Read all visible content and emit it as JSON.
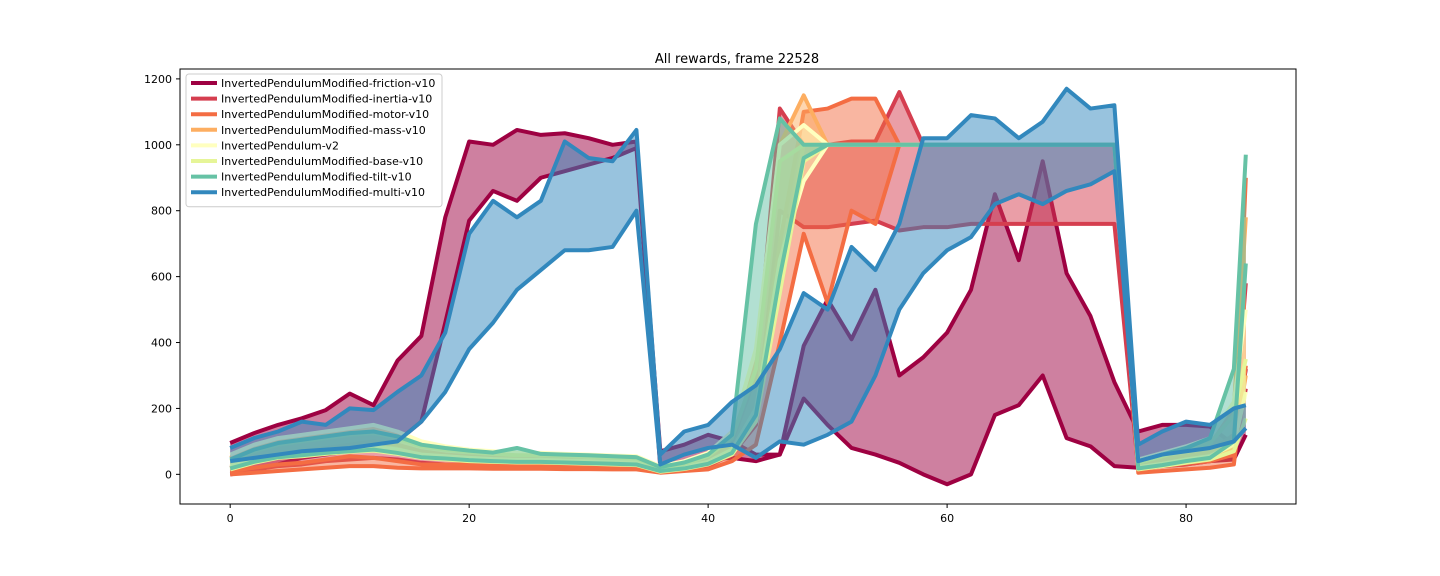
{
  "chart_data": {
    "type": "line",
    "title": "All rewards, frame 22528",
    "xlabel": "",
    "ylabel": "",
    "xlim": [
      -4.2,
      89.2
    ],
    "ylim": [
      -90,
      1230
    ],
    "xticks": [
      0,
      20,
      40,
      60,
      80
    ],
    "yticks": [
      0,
      200,
      400,
      600,
      800,
      1000,
      1200
    ],
    "grid": false,
    "legend_position": "top-left",
    "series": [
      {
        "name": "InvertedPendulumModified-friction-v10",
        "color": "#9e0142",
        "x": [
          0,
          2,
          4,
          6,
          8,
          10,
          12,
          14,
          16,
          18,
          20,
          22,
          24,
          26,
          28,
          30,
          32,
          34,
          36,
          38,
          40,
          42,
          44,
          46,
          48,
          50,
          52,
          54,
          56,
          58,
          60,
          62,
          64,
          66,
          68,
          70,
          72,
          74,
          76,
          78,
          80,
          82,
          84,
          85
        ],
        "upper": [
          95,
          125,
          150,
          170,
          195,
          245,
          210,
          345,
          420,
          780,
          1010,
          1000,
          1045,
          1030,
          1035,
          1020,
          1000,
          1010,
          70,
          90,
          120,
          100,
          60,
          60,
          390,
          530,
          410,
          560,
          300,
          355,
          430,
          560,
          850,
          650,
          950,
          610,
          480,
          280,
          130,
          150,
          150,
          145,
          90,
          320
        ],
        "lower": [
          0,
          10,
          30,
          50,
          60,
          70,
          80,
          100,
          160,
          460,
          770,
          860,
          830,
          900,
          920,
          940,
          960,
          990,
          20,
          35,
          45,
          50,
          40,
          60,
          230,
          150,
          80,
          60,
          35,
          0,
          -30,
          0,
          180,
          210,
          300,
          110,
          85,
          25,
          20,
          25,
          30,
          40,
          45,
          120
        ]
      },
      {
        "name": "InvertedPendulumModified-inertia-v10",
        "color": "#d53e4f",
        "x": [
          0,
          2,
          4,
          6,
          8,
          10,
          12,
          14,
          16,
          18,
          20,
          22,
          24,
          26,
          28,
          30,
          32,
          34,
          36,
          38,
          40,
          42,
          44,
          46,
          48,
          50,
          52,
          54,
          56,
          58,
          60,
          62,
          64,
          66,
          68,
          70,
          72,
          74,
          76,
          78,
          80,
          82,
          84,
          85
        ],
        "upper": [
          20,
          40,
          60,
          70,
          80,
          90,
          100,
          90,
          70,
          60,
          55,
          50,
          50,
          45,
          45,
          40,
          40,
          35,
          20,
          30,
          50,
          100,
          300,
          1110,
          1000,
          1000,
          1010,
          1010,
          1160,
          1000,
          1000,
          1000,
          1000,
          1000,
          1000,
          1000,
          1000,
          1000,
          30,
          45,
          55,
          70,
          120,
          580
        ],
        "lower": [
          5,
          15,
          25,
          30,
          40,
          45,
          50,
          45,
          35,
          30,
          28,
          25,
          25,
          22,
          22,
          20,
          20,
          18,
          10,
          15,
          25,
          60,
          150,
          800,
          750,
          750,
          760,
          770,
          740,
          750,
          750,
          760,
          760,
          760,
          760,
          760,
          760,
          760,
          15,
          25,
          30,
          40,
          60,
          260
        ]
      },
      {
        "name": "InvertedPendulumModified-motor-v10",
        "color": "#f46d43",
        "x": [
          0,
          2,
          4,
          6,
          8,
          10,
          12,
          14,
          16,
          18,
          20,
          22,
          24,
          26,
          28,
          30,
          32,
          34,
          36,
          38,
          40,
          42,
          44,
          46,
          48,
          50,
          52,
          54,
          56,
          58,
          60,
          62,
          64,
          66,
          68,
          70,
          72,
          74,
          76,
          78,
          80,
          82,
          84,
          85
        ],
        "upper": [
          10,
          20,
          30,
          35,
          45,
          55,
          50,
          40,
          30,
          30,
          30,
          28,
          28,
          28,
          27,
          27,
          26,
          25,
          15,
          20,
          30,
          80,
          200,
          700,
          1100,
          1110,
          1140,
          1140,
          1000,
          1000,
          1000,
          1000,
          1000,
          1000,
          1000,
          1000,
          1000,
          1000,
          20,
          30,
          35,
          40,
          60,
          900
        ],
        "lower": [
          0,
          5,
          10,
          15,
          20,
          25,
          25,
          20,
          18,
          18,
          18,
          17,
          17,
          17,
          16,
          16,
          15,
          15,
          5,
          10,
          15,
          40,
          90,
          400,
          730,
          520,
          800,
          760,
          1000,
          1000,
          1000,
          1000,
          1000,
          1000,
          1000,
          1000,
          1000,
          1000,
          5,
          10,
          15,
          20,
          30,
          330
        ]
      },
      {
        "name": "InvertedPendulumModified-mass-v10",
        "color": "#fdae61",
        "x": [
          0,
          2,
          4,
          6,
          8,
          10,
          12,
          14,
          16,
          18,
          20,
          22,
          24,
          26,
          28,
          30,
          32,
          34,
          36,
          38,
          40,
          42,
          44,
          46,
          48,
          50,
          52,
          54,
          56,
          58,
          60,
          62,
          64,
          66,
          68,
          70,
          72,
          74,
          76,
          78,
          80,
          82,
          84,
          85
        ],
        "upper": [
          50,
          80,
          100,
          110,
          120,
          130,
          140,
          120,
          90,
          80,
          70,
          65,
          60,
          60,
          58,
          55,
          52,
          50,
          20,
          35,
          60,
          120,
          350,
          1000,
          1150,
          1000,
          1000,
          1000,
          1000,
          1000,
          1000,
          1000,
          1000,
          1000,
          1000,
          1000,
          1000,
          1000,
          40,
          60,
          80,
          100,
          200,
          780
        ],
        "lower": [
          20,
          40,
          55,
          60,
          70,
          75,
          80,
          70,
          55,
          50,
          45,
          42,
          40,
          40,
          38,
          36,
          35,
          33,
          10,
          20,
          35,
          70,
          180,
          600,
          1000,
          1000,
          1000,
          1000,
          1000,
          1000,
          1000,
          1000,
          1000,
          1000,
          1000,
          1000,
          1000,
          1000,
          20,
          30,
          40,
          50,
          80,
          300
        ]
      },
      {
        "name": "InvertedPendulum-v2",
        "color": "#ffffbf",
        "x": [
          0,
          2,
          4,
          6,
          8,
          10,
          12,
          14,
          16,
          18,
          20,
          22,
          24,
          26,
          28,
          30,
          32,
          34,
          36,
          38,
          40,
          42,
          44,
          46,
          48,
          50,
          52,
          54,
          56,
          58,
          60,
          62,
          64,
          66,
          68,
          70,
          72,
          74,
          76,
          78,
          80,
          82,
          84,
          85
        ],
        "upper": [
          60,
          90,
          110,
          120,
          130,
          140,
          150,
          130,
          100,
          85,
          75,
          70,
          65,
          65,
          62,
          60,
          57,
          55,
          25,
          40,
          65,
          130,
          380,
          1000,
          1060,
          1000,
          1000,
          1000,
          1000,
          1000,
          1000,
          1000,
          1000,
          1000,
          1000,
          1000,
          1000,
          1000,
          45,
          65,
          85,
          110,
          220,
          500
        ],
        "lower": [
          25,
          45,
          60,
          65,
          75,
          80,
          85,
          75,
          60,
          55,
          50,
          46,
          44,
          44,
          42,
          40,
          38,
          36,
          12,
          22,
          38,
          75,
          200,
          650,
          890,
          1000,
          1000,
          1000,
          1000,
          1000,
          1000,
          1000,
          1000,
          1000,
          1000,
          1000,
          1000,
          1000,
          22,
          32,
          45,
          55,
          90,
          250
        ]
      },
      {
        "name": "InvertedPendulumModified-base-v10",
        "color": "#e6f598",
        "x": [
          0,
          2,
          4,
          6,
          8,
          10,
          12,
          14,
          16,
          18,
          20,
          22,
          24,
          26,
          28,
          30,
          32,
          34,
          36,
          38,
          40,
          42,
          44,
          46,
          48,
          50,
          52,
          54,
          56,
          58,
          60,
          62,
          64,
          66,
          68,
          70,
          72,
          74,
          76,
          78,
          80,
          82,
          84,
          85
        ],
        "upper": [
          40,
          70,
          90,
          100,
          110,
          120,
          125,
          110,
          85,
          75,
          68,
          62,
          58,
          58,
          56,
          54,
          50,
          48,
          18,
          32,
          55,
          110,
          320,
          950,
          1000,
          1000,
          1000,
          1000,
          1000,
          1000,
          1000,
          1000,
          1000,
          1000,
          1000,
          1000,
          1000,
          1000,
          35,
          55,
          75,
          95,
          180,
          350
        ],
        "lower": [
          15,
          35,
          50,
          55,
          62,
          68,
          72,
          62,
          50,
          45,
          40,
          38,
          36,
          36,
          34,
          32,
          30,
          28,
          8,
          16,
          30,
          60,
          160,
          550,
          950,
          1000,
          1000,
          1000,
          1000,
          1000,
          1000,
          1000,
          1000,
          1000,
          1000,
          1000,
          1000,
          1000,
          15,
          25,
          35,
          45,
          70,
          170
        ]
      },
      {
        "name": "InvertedPendulumModified-tilt-v10",
        "color": "#66c2a5",
        "x": [
          0,
          2,
          4,
          6,
          8,
          10,
          12,
          14,
          16,
          18,
          20,
          22,
          24,
          26,
          28,
          30,
          32,
          34,
          36,
          38,
          40,
          42,
          44,
          46,
          48,
          50,
          52,
          54,
          56,
          58,
          60,
          62,
          64,
          66,
          68,
          70,
          72,
          74,
          76,
          78,
          80,
          82,
          84,
          85
        ],
        "upper": [
          45,
          75,
          95,
          105,
          115,
          125,
          130,
          115,
          90,
          80,
          72,
          66,
          80,
          62,
          60,
          58,
          55,
          52,
          22,
          36,
          60,
          120,
          760,
          1080,
          1000,
          1000,
          1000,
          1000,
          1000,
          1000,
          1000,
          1000,
          1000,
          1000,
          1000,
          1000,
          1000,
          1000,
          40,
          60,
          80,
          110,
          320,
          970
        ],
        "lower": [
          18,
          38,
          52,
          58,
          65,
          70,
          75,
          65,
          52,
          48,
          43,
          40,
          38,
          38,
          36,
          34,
          32,
          30,
          10,
          18,
          32,
          65,
          180,
          600,
          960,
          1000,
          1000,
          1000,
          1000,
          1000,
          1000,
          1000,
          1000,
          1000,
          1000,
          1000,
          1000,
          1000,
          18,
          28,
          40,
          50,
          100,
          640
        ]
      },
      {
        "name": "InvertedPendulumModified-multi-v10",
        "color": "#3288bd",
        "x": [
          0,
          2,
          4,
          6,
          8,
          10,
          12,
          14,
          16,
          18,
          20,
          22,
          24,
          26,
          28,
          30,
          32,
          34,
          36,
          38,
          40,
          42,
          44,
          46,
          48,
          50,
          52,
          54,
          56,
          58,
          60,
          62,
          64,
          66,
          68,
          70,
          72,
          74,
          76,
          78,
          80,
          82,
          84,
          85
        ],
        "upper": [
          80,
          110,
          130,
          160,
          150,
          200,
          195,
          250,
          300,
          430,
          730,
          830,
          780,
          830,
          1010,
          960,
          950,
          1045,
          60,
          130,
          150,
          220,
          270,
          380,
          550,
          500,
          690,
          620,
          760,
          1020,
          1020,
          1090,
          1080,
          1020,
          1070,
          1170,
          1110,
          1120,
          90,
          130,
          160,
          150,
          200,
          210
        ],
        "lower": [
          40,
          50,
          60,
          70,
          75,
          80,
          90,
          100,
          160,
          250,
          380,
          460,
          560,
          620,
          680,
          680,
          690,
          800,
          30,
          60,
          80,
          90,
          50,
          100,
          90,
          120,
          160,
          300,
          500,
          610,
          680,
          720,
          820,
          850,
          820,
          860,
          880,
          920,
          40,
          60,
          70,
          80,
          100,
          140
        ]
      }
    ]
  }
}
